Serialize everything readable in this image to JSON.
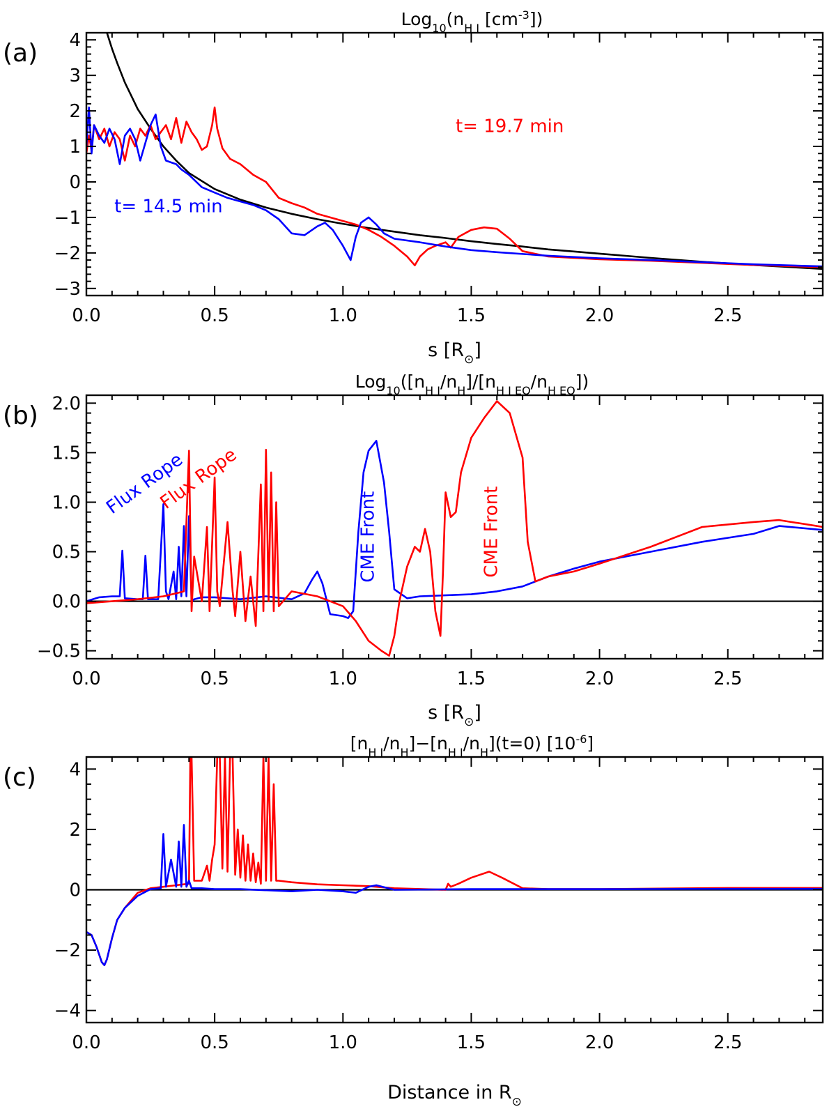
{
  "chart_data": [
    {
      "panel": "(a)",
      "type": "line",
      "title": "Log10(nH I [cm^-3])",
      "title_parts": {
        "base": "Log",
        "base_sub": "10",
        "open": "(n",
        "species_sub": "H I",
        "unit": " [cm",
        "unit_sup": "-3",
        "close": "])"
      },
      "xlabel": "s [R⊙]",
      "xlim": [
        0.0,
        2.87
      ],
      "ylim": [
        -3.2,
        4.2
      ],
      "x_ticks": [
        "0.0",
        "0.5",
        "1.0",
        "1.5",
        "2.0",
        "2.5"
      ],
      "x_tick_values": [
        0.0,
        0.5,
        1.0,
        1.5,
        2.0,
        2.5
      ],
      "y_ticks": [
        "-3",
        "-2",
        "-1",
        "0",
        "1",
        "2",
        "3",
        "4"
      ],
      "y_tick_values": [
        -3,
        -2,
        -1,
        0,
        1,
        2,
        3,
        4
      ],
      "zero_line": false,
      "annotations": [
        {
          "text": "t=  19.7 min",
          "color": "#ff0000",
          "x": 1.65,
          "y": 1.4
        },
        {
          "text": "t=  14.5 min",
          "color": "#0000ff",
          "x": 0.32,
          "y": -0.85
        }
      ],
      "series": [
        {
          "color": "#000000",
          "x": [
            0.08,
            0.1,
            0.12,
            0.15,
            0.18,
            0.2,
            0.25,
            0.3,
            0.35,
            0.4,
            0.5,
            0.6,
            0.7,
            0.8,
            0.9,
            1.0,
            1.1,
            1.2,
            1.3,
            1.4,
            1.5,
            1.6,
            1.7,
            1.8,
            1.9,
            2.0,
            2.2,
            2.4,
            2.6,
            2.87
          ],
          "y": [
            4.2,
            3.75,
            3.35,
            2.8,
            2.35,
            2.05,
            1.5,
            1.0,
            0.6,
            0.25,
            -0.2,
            -0.5,
            -0.72,
            -0.9,
            -1.05,
            -1.18,
            -1.3,
            -1.4,
            -1.5,
            -1.58,
            -1.67,
            -1.75,
            -1.82,
            -1.9,
            -1.96,
            -2.02,
            -2.14,
            -2.25,
            -2.34,
            -2.45
          ]
        },
        {
          "color": "#ff0000",
          "x": [
            0.0,
            0.01,
            0.02,
            0.03,
            0.05,
            0.07,
            0.09,
            0.11,
            0.13,
            0.15,
            0.17,
            0.19,
            0.21,
            0.23,
            0.25,
            0.27,
            0.29,
            0.31,
            0.33,
            0.35,
            0.37,
            0.39,
            0.41,
            0.43,
            0.45,
            0.47,
            0.49,
            0.5,
            0.51,
            0.53,
            0.56,
            0.6,
            0.65,
            0.7,
            0.75,
            0.8,
            0.85,
            0.9,
            0.95,
            1.0,
            1.05,
            1.1,
            1.15,
            1.2,
            1.25,
            1.28,
            1.3,
            1.33,
            1.36,
            1.4,
            1.42,
            1.45,
            1.5,
            1.55,
            1.6,
            1.65,
            1.7,
            1.8,
            2.0,
            2.2,
            2.4,
            2.6,
            2.87
          ],
          "y": [
            0.8,
            1.3,
            0.9,
            1.6,
            1.2,
            1.5,
            1.0,
            1.4,
            1.2,
            0.6,
            1.3,
            1.0,
            1.5,
            1.3,
            1.6,
            1.2,
            1.4,
            1.6,
            1.2,
            1.8,
            1.1,
            1.7,
            1.4,
            1.2,
            0.9,
            1.0,
            1.6,
            2.1,
            1.5,
            0.95,
            0.65,
            0.5,
            0.2,
            0.0,
            -0.45,
            -0.6,
            -0.72,
            -0.9,
            -1.0,
            -1.1,
            -1.2,
            -1.35,
            -1.55,
            -1.8,
            -2.1,
            -2.35,
            -2.1,
            -1.9,
            -1.8,
            -1.7,
            -1.85,
            -1.55,
            -1.35,
            -1.28,
            -1.32,
            -1.6,
            -1.95,
            -2.1,
            -2.18,
            -2.22,
            -2.28,
            -2.34,
            -2.4
          ]
        },
        {
          "color": "#0000ff",
          "x": [
            0.0,
            0.01,
            0.02,
            0.03,
            0.05,
            0.07,
            0.09,
            0.11,
            0.13,
            0.15,
            0.17,
            0.19,
            0.21,
            0.23,
            0.25,
            0.27,
            0.29,
            0.31,
            0.33,
            0.35,
            0.37,
            0.4,
            0.45,
            0.5,
            0.55,
            0.6,
            0.65,
            0.7,
            0.75,
            0.8,
            0.85,
            0.9,
            0.93,
            0.96,
            1.0,
            1.03,
            1.05,
            1.07,
            1.1,
            1.13,
            1.16,
            1.2,
            1.3,
            1.4,
            1.5,
            1.6,
            1.8,
            2.0,
            2.2,
            2.4,
            2.6,
            2.87
          ],
          "y": [
            1.0,
            2.1,
            0.8,
            1.6,
            1.3,
            1.1,
            1.5,
            1.2,
            0.5,
            1.3,
            1.5,
            1.2,
            0.6,
            1.1,
            1.6,
            1.9,
            1.0,
            0.6,
            0.55,
            0.5,
            0.35,
            0.2,
            -0.15,
            -0.3,
            -0.45,
            -0.55,
            -0.65,
            -0.8,
            -1.05,
            -1.45,
            -1.5,
            -1.25,
            -1.15,
            -1.35,
            -1.8,
            -2.2,
            -1.55,
            -1.15,
            -1.0,
            -1.2,
            -1.45,
            -1.6,
            -1.7,
            -1.82,
            -1.92,
            -1.98,
            -2.08,
            -2.15,
            -2.2,
            -2.26,
            -2.32,
            -2.38
          ]
        }
      ]
    },
    {
      "panel": "(b)",
      "type": "line",
      "title": "Log10([nH I/nH]/[nH I EQ/nH EQ])",
      "title_parts": {
        "base": "Log",
        "base_sub": "10",
        "p1": "([n",
        "p1_sub": "H I",
        "p2": "/n",
        "p2_sub": "H",
        "p3": "]/[n",
        "p3_sub": "H I EQ",
        "p4": "/n",
        "p4_sub": "H EQ",
        "close": "])"
      },
      "xlabel": "s [R⊙]",
      "xlim": [
        0.0,
        2.87
      ],
      "ylim": [
        -0.58,
        2.08
      ],
      "x_ticks": [
        "0.0",
        "0.5",
        "1.0",
        "1.5",
        "2.0",
        "2.5"
      ],
      "x_tick_values": [
        0.0,
        0.5,
        1.0,
        1.5,
        2.0,
        2.5
      ],
      "y_ticks": [
        "-0.5",
        "0.0",
        "0.5",
        "1.0",
        "1.5",
        "2.0"
      ],
      "y_tick_values": [
        -0.5,
        0.0,
        0.5,
        1.0,
        1.5,
        2.0
      ],
      "zero_line": true,
      "annotations": [
        {
          "text": "Flux Rope",
          "color": "#0000ff",
          "x": 0.24,
          "y": 1.14,
          "rotate": -36
        },
        {
          "text": "Flux Rope",
          "color": "#ff0000",
          "x": 0.45,
          "y": 1.19,
          "rotate": -36
        },
        {
          "text": "CME Front",
          "color": "#0000ff",
          "x": 1.12,
          "y": 0.65,
          "rotate": -90
        },
        {
          "text": "CME Front",
          "color": "#ff0000",
          "x": 1.6,
          "y": 0.7,
          "rotate": -90
        }
      ],
      "series": [
        {
          "color": "#0000ff",
          "x": [
            0.0,
            0.05,
            0.1,
            0.13,
            0.14,
            0.15,
            0.2,
            0.22,
            0.23,
            0.24,
            0.28,
            0.3,
            0.31,
            0.32,
            0.34,
            0.35,
            0.36,
            0.37,
            0.38,
            0.39,
            0.4,
            0.41,
            0.42,
            0.45,
            0.5,
            0.6,
            0.7,
            0.8,
            0.85,
            0.88,
            0.9,
            0.92,
            0.95,
            1.0,
            1.02,
            1.04,
            1.06,
            1.08,
            1.1,
            1.13,
            1.16,
            1.18,
            1.2,
            1.25,
            1.3,
            1.5,
            1.6,
            1.7,
            1.8,
            1.9,
            2.0,
            2.2,
            2.4,
            2.6,
            2.7,
            2.87
          ],
          "y": [
            0.0,
            0.04,
            0.05,
            0.05,
            0.51,
            0.03,
            0.02,
            0.02,
            0.46,
            0.02,
            0.02,
            0.98,
            0.1,
            0.02,
            0.3,
            0.02,
            0.55,
            0.05,
            0.76,
            0.05,
            0.86,
            0.0,
            0.02,
            0.04,
            0.04,
            0.02,
            0.05,
            0.02,
            0.08,
            0.22,
            0.3,
            0.18,
            -0.13,
            -0.15,
            -0.17,
            -0.1,
            0.7,
            1.3,
            1.52,
            1.62,
            1.2,
            0.7,
            0.12,
            0.03,
            0.05,
            0.07,
            0.1,
            0.15,
            0.25,
            0.33,
            0.4,
            0.5,
            0.6,
            0.68,
            0.76,
            0.72
          ]
        },
        {
          "color": "#ff0000",
          "x": [
            0.0,
            0.1,
            0.2,
            0.3,
            0.35,
            0.38,
            0.4,
            0.41,
            0.42,
            0.45,
            0.47,
            0.48,
            0.5,
            0.51,
            0.52,
            0.55,
            0.57,
            0.58,
            0.6,
            0.62,
            0.64,
            0.66,
            0.68,
            0.69,
            0.7,
            0.71,
            0.72,
            0.73,
            0.74,
            0.75,
            0.8,
            0.9,
            1.0,
            1.05,
            1.1,
            1.15,
            1.18,
            1.2,
            1.22,
            1.25,
            1.28,
            1.3,
            1.32,
            1.34,
            1.36,
            1.38,
            1.39,
            1.4,
            1.42,
            1.44,
            1.46,
            1.5,
            1.55,
            1.6,
            1.65,
            1.7,
            1.72,
            1.75,
            1.8,
            1.9,
            2.0,
            2.2,
            2.4,
            2.6,
            2.7,
            2.87
          ],
          "y": [
            -0.02,
            0.0,
            0.02,
            0.05,
            0.08,
            0.1,
            1.52,
            -0.1,
            0.45,
            0.0,
            0.75,
            -0.1,
            1.25,
            0.1,
            -0.05,
            0.8,
            0.1,
            -0.15,
            0.5,
            -0.2,
            0.25,
            -0.25,
            1.18,
            -0.1,
            1.53,
            0.0,
            1.3,
            -0.1,
            1.0,
            -0.05,
            0.1,
            0.05,
            -0.05,
            -0.2,
            -0.4,
            -0.5,
            -0.55,
            -0.35,
            0.0,
            0.35,
            0.55,
            0.5,
            0.73,
            0.5,
            -0.1,
            -0.35,
            0.3,
            1.1,
            0.85,
            0.9,
            1.3,
            1.65,
            1.85,
            2.02,
            1.9,
            1.45,
            0.6,
            0.2,
            0.25,
            0.3,
            0.38,
            0.55,
            0.75,
            0.8,
            0.82,
            0.75
          ]
        }
      ]
    },
    {
      "panel": "(c)",
      "type": "line",
      "title": "[nH I/nH]-[nH I/nH](t=0) [10^-6]",
      "title_parts": {
        "p1": "[n",
        "p1_sub": "H I",
        "p2": "/n",
        "p2_sub": "H",
        "p3": "]−[n",
        "p3_sub": "H I",
        "p4": "/n",
        "p4_sub": "H",
        "p5": "](t=0)  [10",
        "p5_sup": "-6",
        "close": "]"
      },
      "xlabel": "Distance in R⊙",
      "xlim": [
        0.0,
        2.87
      ],
      "ylim": [
        -4.4,
        4.4
      ],
      "x_ticks": [
        "0.0",
        "0.5",
        "1.0",
        "1.5",
        "2.0",
        "2.5"
      ],
      "x_tick_values": [
        0.0,
        0.5,
        1.0,
        1.5,
        2.0,
        2.5
      ],
      "y_ticks": [
        "-4",
        "-2",
        "0",
        "2",
        "4"
      ],
      "y_tick_values": [
        -4,
        -2,
        0,
        2,
        4
      ],
      "zero_line": true,
      "annotations": [],
      "series": [
        {
          "color": "#ff0000",
          "x": [
            0.0,
            0.02,
            0.04,
            0.06,
            0.07,
            0.08,
            0.1,
            0.12,
            0.15,
            0.18,
            0.2,
            0.25,
            0.3,
            0.35,
            0.4,
            0.405,
            0.41,
            0.42,
            0.45,
            0.47,
            0.48,
            0.49,
            0.5,
            0.51,
            0.52,
            0.53,
            0.54,
            0.55,
            0.56,
            0.57,
            0.58,
            0.59,
            0.6,
            0.61,
            0.62,
            0.63,
            0.64,
            0.65,
            0.66,
            0.67,
            0.68,
            0.69,
            0.7,
            0.71,
            0.72,
            0.73,
            0.74,
            0.75,
            0.8,
            0.9,
            1.0,
            1.1,
            1.2,
            1.4,
            1.41,
            1.42,
            1.45,
            1.5,
            1.57,
            1.62,
            1.7,
            1.8,
            2.0,
            2.5,
            2.87
          ],
          "y": [
            -1.4,
            -1.5,
            -1.9,
            -2.4,
            -2.5,
            -2.3,
            -1.6,
            -1.0,
            -0.6,
            -0.3,
            -0.1,
            0.05,
            0.1,
            0.15,
            0.2,
            4.4,
            4.4,
            0.3,
            0.3,
            0.8,
            0.3,
            1.0,
            1.5,
            4.4,
            4.4,
            0.7,
            4.4,
            0.6,
            4.4,
            4.4,
            0.5,
            2.0,
            0.4,
            1.8,
            0.3,
            1.5,
            0.3,
            1.2,
            0.25,
            0.9,
            0.2,
            4.4,
            0.3,
            4.4,
            0.3,
            3.5,
            0.3,
            0.3,
            0.25,
            0.18,
            0.15,
            0.12,
            0.05,
            0.0,
            0.2,
            0.1,
            0.2,
            0.4,
            0.6,
            0.4,
            0.05,
            0.02,
            0.02,
            0.06,
            0.06
          ]
        },
        {
          "color": "#0000ff",
          "x": [
            0.0,
            0.02,
            0.04,
            0.06,
            0.07,
            0.08,
            0.1,
            0.12,
            0.15,
            0.2,
            0.25,
            0.29,
            0.3,
            0.31,
            0.33,
            0.35,
            0.36,
            0.37,
            0.38,
            0.39,
            0.4,
            0.41,
            0.45,
            0.5,
            0.6,
            0.8,
            0.9,
            1.0,
            1.05,
            1.1,
            1.13,
            1.2,
            1.5,
            2.0,
            2.5,
            2.87
          ],
          "y": [
            -1.4,
            -1.5,
            -1.9,
            -2.4,
            -2.5,
            -2.3,
            -1.6,
            -1.0,
            -0.6,
            -0.2,
            0.02,
            0.05,
            1.85,
            0.1,
            1.0,
            0.1,
            1.6,
            0.1,
            2.15,
            0.1,
            0.3,
            0.05,
            0.05,
            0.02,
            0.02,
            -0.05,
            0.0,
            -0.05,
            -0.1,
            0.1,
            0.15,
            0.0,
            0.02,
            0.02,
            0.03,
            0.03
          ]
        }
      ]
    }
  ],
  "panel_tags": [
    "(a)",
    "(b)",
    "(c)"
  ],
  "sun_symbol": "⊙"
}
